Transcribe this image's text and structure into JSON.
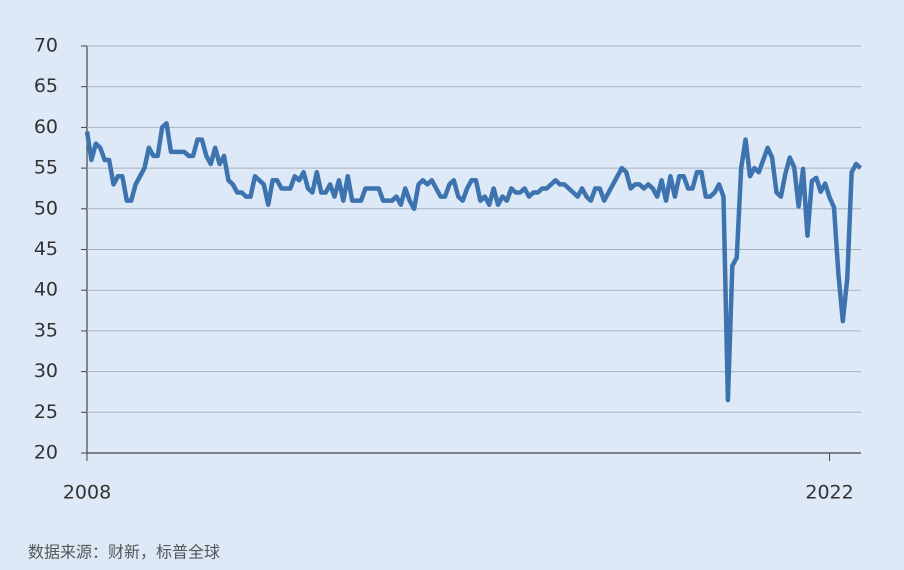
{
  "chart_data": {
    "type": "line",
    "categories": [
      "2008",
      null,
      null,
      null,
      null,
      null,
      null,
      null,
      null,
      null,
      null,
      null,
      null,
      null,
      null,
      null,
      null,
      null,
      null,
      null,
      null,
      null,
      null,
      null,
      null,
      null,
      null,
      null,
      null,
      null,
      null,
      null,
      null,
      null,
      null,
      null,
      null,
      null,
      null,
      null,
      null,
      null,
      null,
      null,
      null,
      null,
      null,
      null,
      null,
      null,
      null,
      null,
      null,
      null,
      null,
      null,
      null,
      null,
      null,
      null,
      null,
      null,
      null,
      null,
      null,
      null,
      null,
      null,
      null,
      null,
      null,
      null,
      null,
      null,
      null,
      null,
      null,
      null,
      null,
      null,
      null,
      null,
      null,
      null,
      null,
      null,
      null,
      null,
      null,
      null,
      null,
      null,
      null,
      null,
      null,
      null,
      null,
      null,
      null,
      null,
      null,
      null,
      null,
      null,
      null,
      null,
      null,
      null,
      null,
      null,
      null,
      null,
      null,
      null,
      null,
      null,
      null,
      null,
      null,
      null,
      null,
      null,
      null,
      null,
      null,
      null,
      null,
      null,
      null,
      null,
      null,
      null,
      null,
      null,
      null,
      null,
      null,
      null,
      null,
      null,
      null,
      null,
      null,
      null,
      null,
      null,
      null,
      null,
      null,
      null,
      null,
      null,
      null,
      null,
      null,
      null,
      null,
      null,
      null,
      null,
      null,
      null,
      null,
      null,
      null,
      null,
      null,
      null,
      "2022",
      null,
      null,
      null,
      null,
      null,
      null,
      null
    ],
    "series": [
      {
        "color": "#3d73ae",
        "values": [
          59.5,
          56,
          58,
          57.5,
          56,
          56,
          53,
          54,
          54,
          51,
          51,
          53,
          54,
          55,
          57.5,
          56.5,
          56.5,
          60,
          60.5,
          57,
          57,
          57,
          57,
          56.5,
          56.5,
          58.5,
          58.5,
          56.5,
          55.5,
          57.5,
          55.5,
          56.5,
          53.5,
          53,
          52,
          52,
          51.5,
          51.5,
          54,
          53.5,
          53,
          50.5,
          53.5,
          53.5,
          52.5,
          52.5,
          52.5,
          54,
          53.5,
          54.5,
          52.5,
          52,
          54.5,
          52,
          52,
          53,
          51.5,
          53.5,
          51,
          54,
          51,
          51,
          51,
          52.5,
          52.5,
          52.5,
          52.5,
          51,
          51,
          51,
          51.5,
          50.5,
          52.5,
          51,
          50,
          53,
          53.5,
          53,
          53.5,
          52.5,
          51.5,
          51.5,
          53,
          53.5,
          51.5,
          51,
          52.5,
          53.5,
          53.5,
          51,
          51.5,
          50.5,
          52.5,
          50.5,
          51.5,
          51,
          52.5,
          52,
          52,
          52.5,
          51.5,
          52,
          52,
          52.5,
          52.5,
          53,
          53.5,
          53,
          53,
          52.5,
          52,
          51.5,
          52.5,
          51.5,
          51,
          52.5,
          52.5,
          51,
          52,
          53,
          54,
          55,
          54.5,
          52.5,
          53,
          53,
          52.5,
          53,
          52.5,
          51.5,
          53.5,
          51,
          54,
          51.5,
          54,
          54,
          52.5,
          52.5,
          54.5,
          54.5,
          51.5,
          51.5,
          52,
          53,
          51.5,
          26.5,
          43,
          44,
          55,
          58.5,
          54,
          55,
          54.5,
          56,
          57.5,
          56.3,
          52,
          51.5,
          54.3,
          56.3,
          55.1,
          50.3,
          54.9,
          46.7,
          53.4,
          53.8,
          52.1,
          53.1,
          51.4,
          50.2,
          42,
          36.2,
          41.4,
          54.5,
          55.5,
          55
        ]
      }
    ],
    "ylim": [
      20,
      70
    ],
    "yticks": [
      20,
      25,
      30,
      35,
      40,
      45,
      50,
      55,
      60,
      65,
      70
    ],
    "grid": true
  },
  "footer": {
    "source": "数据来源：财新，标普全球"
  }
}
